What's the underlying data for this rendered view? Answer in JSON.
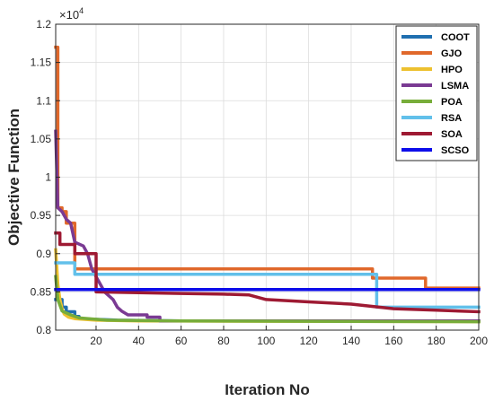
{
  "chart_data": {
    "type": "line",
    "xlabel": "Iteration No",
    "ylabel": "Objective Function",
    "xlim": [
      1,
      200
    ],
    "ylim": [
      0.8,
      1.2
    ],
    "y_multiplier_base": "×10",
    "y_multiplier_exp": "4",
    "x_ticks": [
      20,
      40,
      60,
      80,
      100,
      120,
      140,
      160,
      180,
      200
    ],
    "x_tick_labels": [
      "20",
      "40",
      "60",
      "80",
      "100",
      "120",
      "140",
      "160",
      "180",
      "200"
    ],
    "y_ticks": [
      0.8,
      0.85,
      0.9,
      0.95,
      1.0,
      1.05,
      1.1,
      1.15,
      1.2
    ],
    "y_tick_labels": [
      "0.8",
      "0.85",
      "0.9",
      "0.95",
      "1",
      "1.05",
      "1.1",
      "1.15",
      "1.2"
    ],
    "grid": true,
    "legend_position": "top-right",
    "series": [
      {
        "name": "COOT",
        "color": "#1f6fb0",
        "points": [
          [
            1,
            0.84
          ],
          [
            4,
            0.84
          ],
          [
            4,
            0.83
          ],
          [
            6,
            0.83
          ],
          [
            6,
            0.824
          ],
          [
            10,
            0.824
          ],
          [
            10,
            0.818
          ],
          [
            12,
            0.818
          ],
          [
            12,
            0.815
          ],
          [
            30,
            0.813
          ],
          [
            60,
            0.812
          ],
          [
            200,
            0.812
          ]
        ]
      },
      {
        "name": "GJO",
        "color": "#e0682b",
        "points": [
          [
            1,
            1.17
          ],
          [
            2,
            1.17
          ],
          [
            2,
            0.96
          ],
          [
            4,
            0.96
          ],
          [
            4,
            0.955
          ],
          [
            6,
            0.955
          ],
          [
            6,
            0.94
          ],
          [
            10,
            0.94
          ],
          [
            10,
            0.88
          ],
          [
            150,
            0.88
          ],
          [
            150,
            0.868
          ],
          [
            175,
            0.868
          ],
          [
            175,
            0.855
          ],
          [
            200,
            0.855
          ]
        ]
      },
      {
        "name": "HPO",
        "color": "#edc12f",
        "points": [
          [
            1,
            0.905
          ],
          [
            2,
            0.86
          ],
          [
            3,
            0.84
          ],
          [
            4,
            0.828
          ],
          [
            5,
            0.821
          ],
          [
            7,
            0.817
          ],
          [
            10,
            0.815
          ],
          [
            20,
            0.813
          ],
          [
            40,
            0.812
          ],
          [
            200,
            0.811
          ]
        ]
      },
      {
        "name": "LSMA",
        "color": "#7a3a93",
        "points": [
          [
            1,
            1.06
          ],
          [
            2,
            0.96
          ],
          [
            4,
            0.955
          ],
          [
            6,
            0.945
          ],
          [
            8,
            0.94
          ],
          [
            10,
            0.915
          ],
          [
            14,
            0.91
          ],
          [
            16,
            0.9
          ],
          [
            18,
            0.88
          ],
          [
            22,
            0.86
          ],
          [
            24,
            0.85
          ],
          [
            28,
            0.84
          ],
          [
            30,
            0.83
          ],
          [
            32,
            0.825
          ],
          [
            35,
            0.82
          ],
          [
            44,
            0.82
          ],
          [
            44,
            0.817
          ],
          [
            50,
            0.817
          ],
          [
            50,
            0.812
          ],
          [
            200,
            0.812
          ]
        ]
      },
      {
        "name": "POA",
        "color": "#77ad3a",
        "points": [
          [
            1,
            0.87
          ],
          [
            2,
            0.84
          ],
          [
            4,
            0.825
          ],
          [
            8,
            0.82
          ],
          [
            12,
            0.816
          ],
          [
            25,
            0.813
          ],
          [
            60,
            0.812
          ],
          [
            200,
            0.811
          ]
        ]
      },
      {
        "name": "RSA",
        "color": "#62c0ea",
        "points": [
          [
            1,
            0.888
          ],
          [
            10,
            0.888
          ],
          [
            10,
            0.873
          ],
          [
            152,
            0.873
          ],
          [
            152,
            0.83
          ],
          [
            200,
            0.83
          ]
        ]
      },
      {
        "name": "SOA",
        "color": "#9e1a33",
        "points": [
          [
            1,
            0.927
          ],
          [
            3,
            0.927
          ],
          [
            3,
            0.912
          ],
          [
            10,
            0.912
          ],
          [
            10,
            0.9
          ],
          [
            20,
            0.9
          ],
          [
            20,
            0.85
          ],
          [
            40,
            0.849
          ],
          [
            60,
            0.848
          ],
          [
            80,
            0.847
          ],
          [
            92,
            0.846
          ],
          [
            100,
            0.84
          ],
          [
            120,
            0.837
          ],
          [
            140,
            0.834
          ],
          [
            160,
            0.828
          ],
          [
            180,
            0.826
          ],
          [
            200,
            0.824
          ]
        ]
      },
      {
        "name": "SCSO",
        "color": "#0d0dea",
        "points": [
          [
            1,
            0.853
          ],
          [
            200,
            0.853
          ]
        ]
      }
    ]
  }
}
